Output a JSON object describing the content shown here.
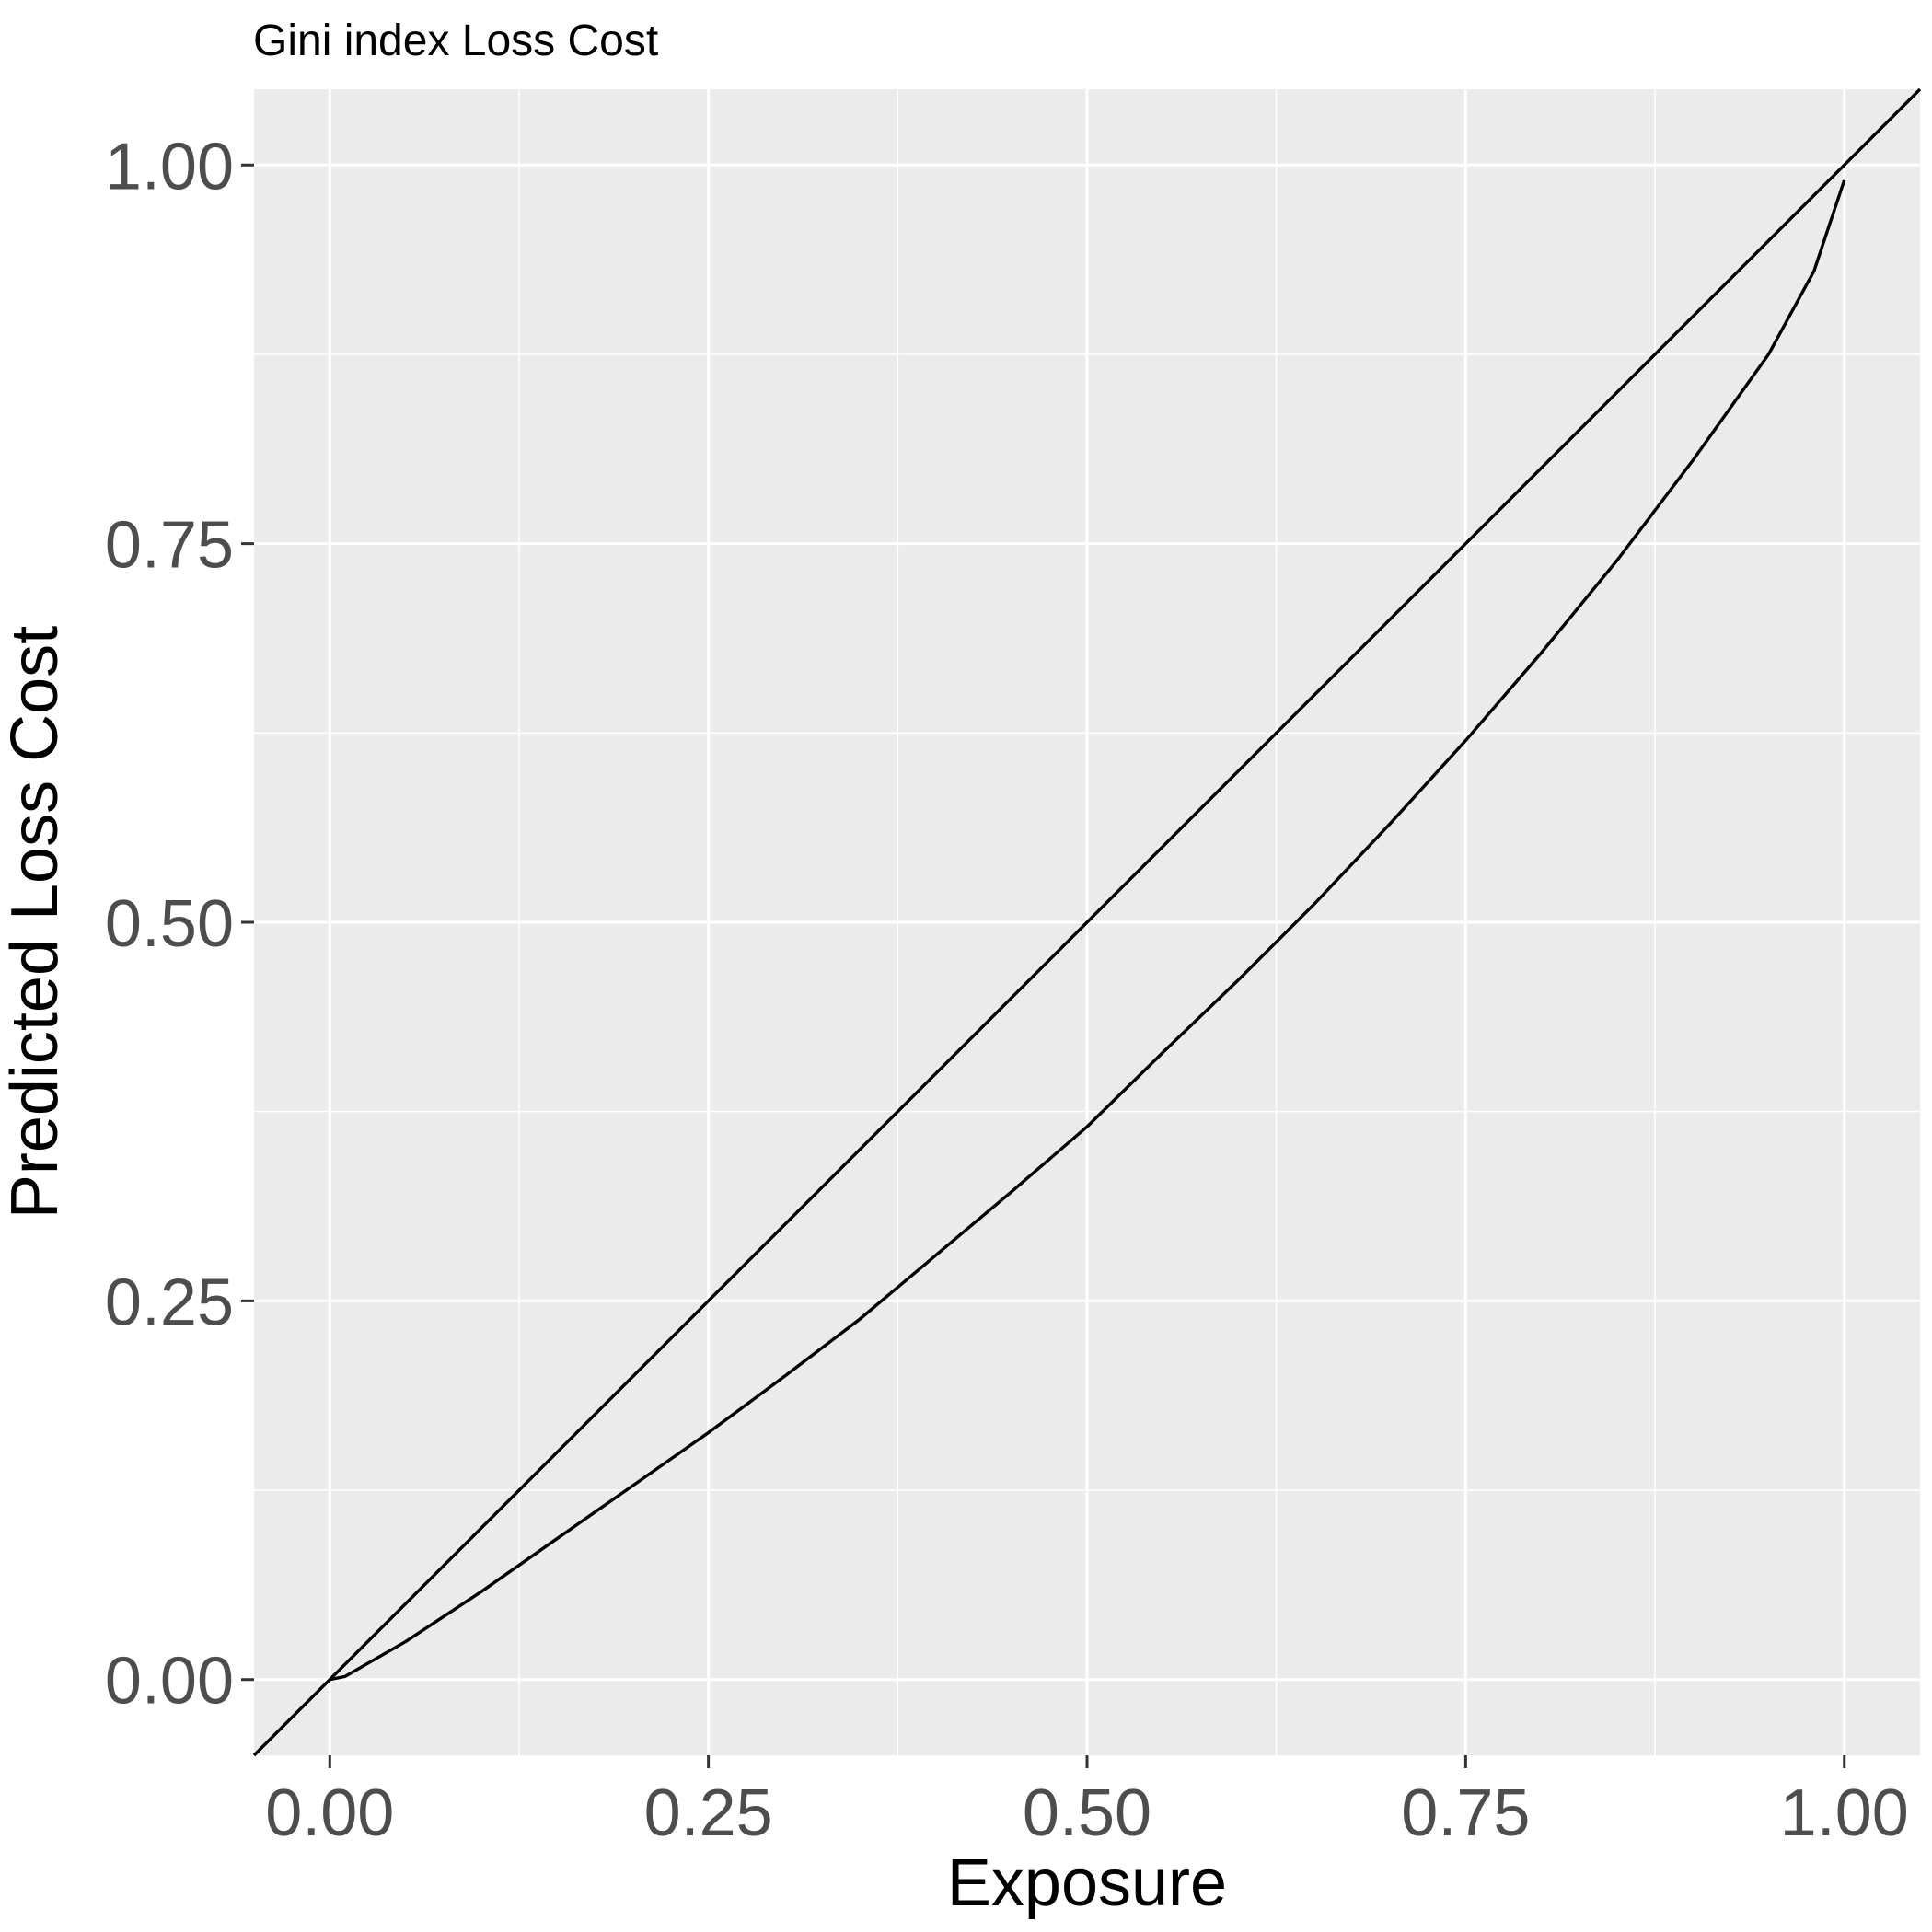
{
  "chart_data": {
    "type": "line",
    "title": "Gini index Loss Cost",
    "xlabel": "Exposure",
    "ylabel": "Predicted Loss Cost",
    "xlim": [
      -0.05,
      1.05
    ],
    "ylim": [
      -0.05,
      1.05
    ],
    "x_ticks": [
      "0.00",
      "0.25",
      "0.50",
      "0.75",
      "1.00"
    ],
    "y_ticks": [
      "0.00",
      "0.25",
      "0.50",
      "0.75",
      "1.00"
    ],
    "grid": true,
    "background": "#ebebeb",
    "line_color": "#000000",
    "series": [
      {
        "x": [
          0.0,
          0.01,
          0.05,
          0.1,
          0.15,
          0.2,
          0.25,
          0.3,
          0.35,
          0.4,
          0.45,
          0.5,
          0.55,
          0.6,
          0.65,
          0.7,
          0.75,
          0.8,
          0.85,
          0.9,
          0.95,
          0.98,
          1.0
        ],
        "y": [
          0.0,
          0.002,
          0.025,
          0.058,
          0.093,
          0.128,
          0.163,
          0.2,
          0.238,
          0.28,
          0.322,
          0.365,
          0.414,
          0.462,
          0.512,
          0.565,
          0.62,
          0.678,
          0.739,
          0.805,
          0.875,
          0.93,
          0.99
        ]
      },
      {
        "x": [
          -0.05,
          1.05
        ],
        "y": [
          -0.05,
          1.05
        ]
      }
    ]
  }
}
